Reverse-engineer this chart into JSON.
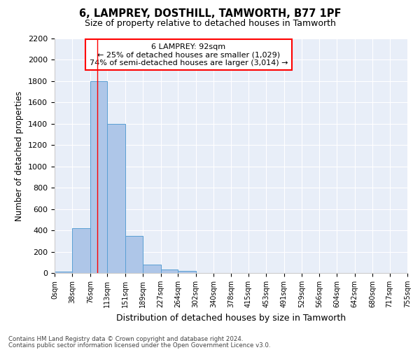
{
  "title1": "6, LAMPREY, DOSTHILL, TAMWORTH, B77 1PF",
  "title2": "Size of property relative to detached houses in Tamworth",
  "xlabel": "Distribution of detached houses by size in Tamworth",
  "ylabel": "Number of detached properties",
  "bar_edges": [
    0,
    38,
    76,
    113,
    151,
    189,
    227,
    264,
    302,
    340,
    378,
    415,
    453,
    491,
    529,
    566,
    604,
    642,
    680,
    717,
    755
  ],
  "bar_heights": [
    15,
    420,
    1800,
    1400,
    350,
    80,
    35,
    20,
    0,
    0,
    0,
    0,
    0,
    0,
    0,
    0,
    0,
    0,
    0,
    0
  ],
  "bar_color": "#aec6e8",
  "bar_edge_color": "#5a9fd4",
  "annotation_line1": "6 LAMPREY: 92sqm",
  "annotation_line2": "← 25% of detached houses are smaller (1,029)",
  "annotation_line3": "74% of semi-detached houses are larger (3,014) →",
  "annotation_box_facecolor": "white",
  "annotation_box_edgecolor": "red",
  "vline_x": 92,
  "vline_color": "red",
  "ylim": [
    0,
    2200
  ],
  "yticks": [
    0,
    200,
    400,
    600,
    800,
    1000,
    1200,
    1400,
    1600,
    1800,
    2000,
    2200
  ],
  "tick_labels": [
    "0sqm",
    "38sqm",
    "76sqm",
    "113sqm",
    "151sqm",
    "189sqm",
    "227sqm",
    "264sqm",
    "302sqm",
    "340sqm",
    "378sqm",
    "415sqm",
    "453sqm",
    "491sqm",
    "529sqm",
    "566sqm",
    "604sqm",
    "642sqm",
    "680sqm",
    "717sqm",
    "755sqm"
  ],
  "footer1": "Contains HM Land Registry data © Crown copyright and database right 2024.",
  "footer2": "Contains public sector information licensed under the Open Government Licence v3.0.",
  "plot_bg_color": "#e8eef8"
}
